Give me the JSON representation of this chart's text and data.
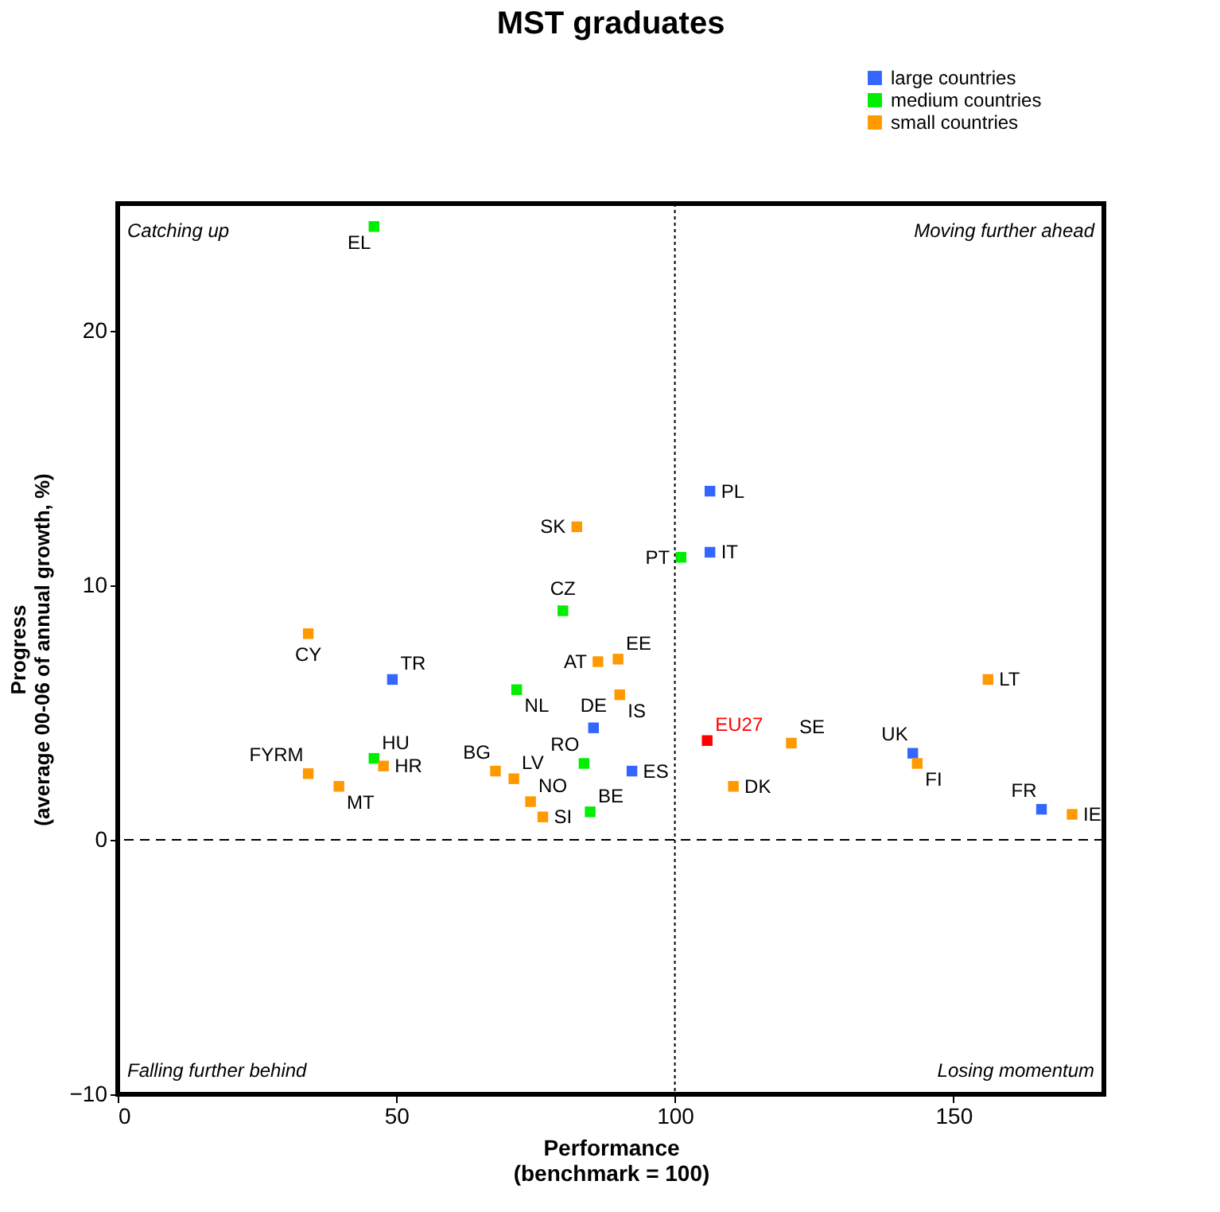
{
  "chart_data": {
    "type": "scatter",
    "title": "MST graduates",
    "xlabel": "Performance\n(benchmark = 100)",
    "ylabel": "Progress\n(average 00-06 of annual growth, %)",
    "xlim": [
      0,
      177
    ],
    "ylim": [
      -10,
      25
    ],
    "xticks": [
      0,
      50,
      100,
      150
    ],
    "yticks": [
      -10,
      0,
      10,
      20
    ],
    "grid": false,
    "legend": "top right",
    "marker": "square",
    "series": [
      {
        "name": "large countries",
        "color": "#3366ff",
        "x": [
          106.3,
          106.3,
          49.3,
          85.4,
          142.7,
          92.3,
          165.8
        ],
        "values": [
          13.7,
          11.3,
          6.3,
          4.4,
          3.4,
          2.7,
          1.2
        ]
      },
      {
        "name": "medium countries",
        "color": "#00ee00",
        "x": [
          46.0,
          101.1,
          79.9,
          71.6,
          46.0,
          83.7,
          84.8
        ],
        "values": [
          24.1,
          11.1,
          9.0,
          5.9,
          3.2,
          3.0,
          1.1
        ]
      },
      {
        "name": "small countries",
        "color": "#ff9900",
        "x": [
          82.4,
          34.2,
          86.2,
          89.8,
          90.1,
          120.9,
          143.5,
          156.2,
          47.7,
          34.2,
          39.7,
          67.8,
          71.1,
          74.1,
          76.3,
          110.5,
          171.3
        ],
        "values": [
          12.3,
          8.1,
          7.0,
          7.1,
          5.7,
          3.8,
          3.0,
          6.3,
          2.9,
          2.6,
          2.1,
          2.7,
          2.4,
          1.5,
          0.9,
          2.1,
          1.0
        ]
      },
      {
        "color": "#ff0000",
        "x": [
          105.8
        ],
        "values": [
          3.9
        ]
      }
    ],
    "ref_lines": [
      {
        "axis": "x",
        "value": 100,
        "line_style": "dotted"
      },
      {
        "axis": "y",
        "value": 0,
        "line_style": "dashed"
      }
    ],
    "annotations": [
      "Catching up",
      "Moving further ahead",
      "Falling further behind",
      "Losing momentum",
      {
        "text": "EL",
        "x": 46.0,
        "y": 24.1
      },
      {
        "text": "SK",
        "x": 82.4,
        "y": 12.3
      },
      {
        "text": "PT",
        "x": 101.1,
        "y": 11.1
      },
      {
        "text": "PL",
        "x": 106.3,
        "y": 13.7
      },
      {
        "text": "IT",
        "x": 106.3,
        "y": 11.3
      },
      {
        "text": "CZ",
        "x": 79.9,
        "y": 9.0
      },
      {
        "text": "CY",
        "x": 34.2,
        "y": 8.1
      },
      {
        "text": "TR",
        "x": 49.3,
        "y": 6.3
      },
      {
        "text": "AT",
        "x": 86.2,
        "y": 7.0
      },
      {
        "text": "EE",
        "x": 89.8,
        "y": 7.1
      },
      {
        "text": "NL",
        "x": 71.6,
        "y": 5.9
      },
      {
        "text": "IS",
        "x": 90.1,
        "y": 5.7
      },
      {
        "text": "DE",
        "x": 85.4,
        "y": 4.4
      },
      {
        "text": "EU27",
        "x": 105.8,
        "y": 3.9
      },
      {
        "text": "SE",
        "x": 120.9,
        "y": 3.8
      },
      {
        "text": "UK",
        "x": 142.7,
        "y": 3.4
      },
      {
        "text": "FI",
        "x": 143.5,
        "y": 3.0
      },
      {
        "text": "LT",
        "x": 156.2,
        "y": 6.3
      },
      {
        "text": "HU",
        "x": 46.0,
        "y": 3.2
      },
      {
        "text": "HR",
        "x": 47.7,
        "y": 2.9
      },
      {
        "text": "FYRM",
        "x": 34.2,
        "y": 2.6
      },
      {
        "text": "MT",
        "x": 39.7,
        "y": 2.1
      },
      {
        "text": "BG",
        "x": 67.8,
        "y": 2.7
      },
      {
        "text": "LV",
        "x": 71.1,
        "y": 2.4
      },
      {
        "text": "RO",
        "x": 83.7,
        "y": 3.0
      },
      {
        "text": "ES",
        "x": 92.3,
        "y": 2.7
      },
      {
        "text": "NO",
        "x": 74.1,
        "y": 1.5
      },
      {
        "text": "SI",
        "x": 76.3,
        "y": 0.9
      },
      {
        "text": "BE",
        "x": 84.8,
        "y": 1.1
      },
      {
        "text": "DK",
        "x": 110.5,
        "y": 2.1
      },
      {
        "text": "FR",
        "x": 165.8,
        "y": 1.2
      },
      {
        "text": "IE",
        "x": 171.3,
        "y": 1.0
      }
    ]
  }
}
